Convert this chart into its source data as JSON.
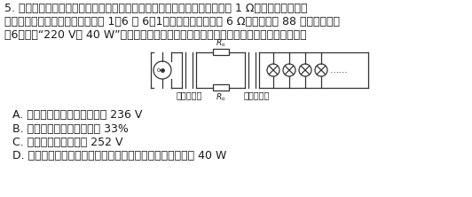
{
  "title_num": "5.",
  "question_text_line1": "如图所示，一微小型发电厂为某中学提供照明用电。已知发电机的内阻为 1 Ω，升压变压器和降",
  "question_text_line2": "压变压器的原、副线圈匹数分别为 1：6 和 6：1，输电线上总电阻为 6 Ω，该中学共 88 个班，每个班",
  "question_text_line3": "有6盏标有“220 V　 40 W”的照明灯。若所有班级的照明灯都正常发光，下列说法正确的是",
  "option_A": "A. 发电机产生的感应电动势为 236 V",
  "option_B": "B. 整个装置的机械效率约为 33%",
  "option_C": "C. 发电机输出的电压为 252 V",
  "option_D": "D. 若每个班级只有一半的灯工作，则每盏灯的实际功率大于 40 W",
  "label_step_up": "升压变压器",
  "label_step_down": "降压变压器",
  "bg_color": "#ffffff",
  "text_color": "#1a1a1a",
  "circuit_color": "#333333",
  "font_size_main": 9.0,
  "font_size_small": 7.5
}
